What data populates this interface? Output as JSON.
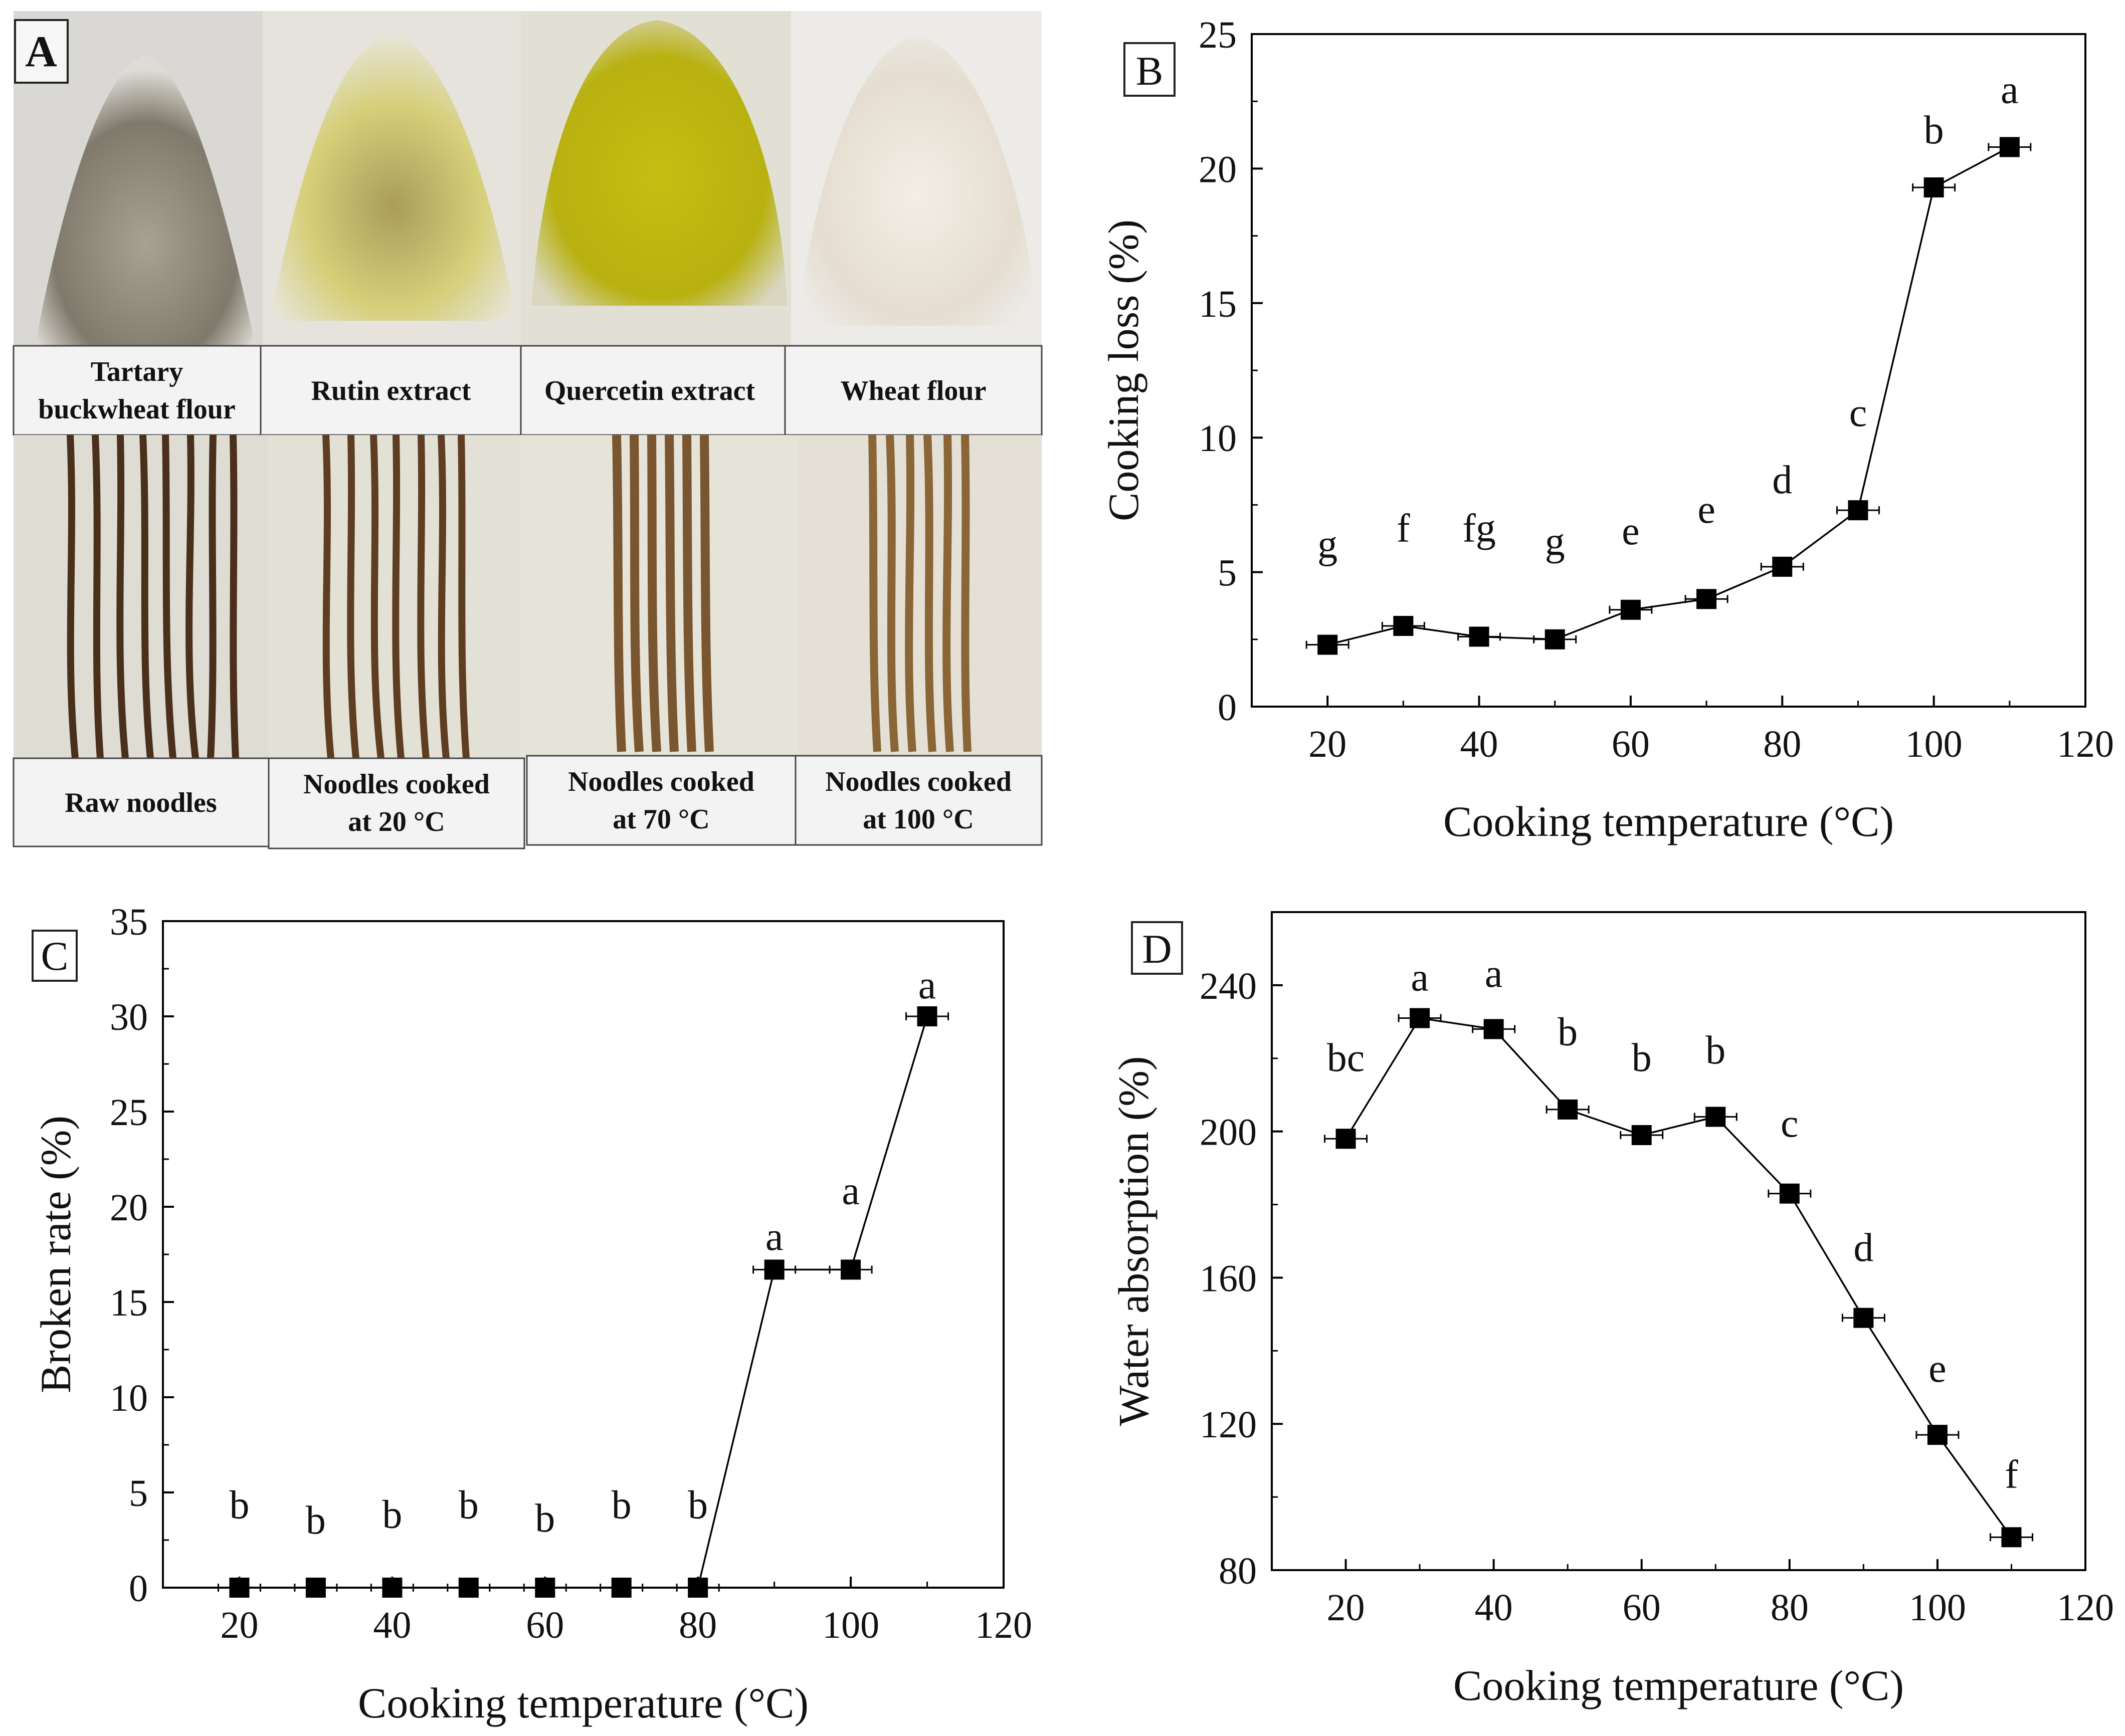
{
  "panel_a": {
    "label": "A",
    "powders": [
      {
        "name": "tartary-buckwheat-flour",
        "caption": [
          "Tartary",
          "buckwheat flour"
        ],
        "color": "#8f8a7c"
      },
      {
        "name": "rutin-extract",
        "caption": [
          "Rutin extract"
        ],
        "color": "#c9c26a"
      },
      {
        "name": "quercetin-extract",
        "caption": [
          "Quercetin extract"
        ],
        "color": "#c9c21a"
      },
      {
        "name": "wheat-flour",
        "caption": [
          "Wheat flour"
        ],
        "color": "#e9e2d7"
      }
    ],
    "noodles": [
      {
        "name": "raw-noodles",
        "caption": [
          "Raw noodles"
        ],
        "color": "#5a3b22"
      },
      {
        "name": "noodles-cooked-20",
        "caption": [
          "Noodles cooked",
          "at 20 °C"
        ],
        "color": "#6a4628"
      },
      {
        "name": "noodles-cooked-70",
        "caption": [
          "Noodles cooked",
          "at 70 °C"
        ],
        "color": "#7e5a33"
      },
      {
        "name": "noodles-cooked-100",
        "caption": [
          "Noodles cooked",
          "at 100 °C"
        ],
        "color": "#8f6a3d"
      }
    ]
  },
  "chart_data": [
    {
      "id": "B",
      "type": "line",
      "panel_label": "B",
      "xlabel": "Cooking temperature (°C)",
      "ylabel": "Cooking loss (%)",
      "xlim": [
        10,
        120
      ],
      "ylim": [
        0,
        25
      ],
      "xticks": [
        20,
        40,
        60,
        80,
        100,
        120
      ],
      "yticks": [
        0,
        5,
        10,
        15,
        20,
        25
      ],
      "x": [
        20,
        30,
        40,
        50,
        60,
        70,
        80,
        90,
        100,
        110
      ],
      "y": [
        2.3,
        3.0,
        2.6,
        2.5,
        3.6,
        4.0,
        5.2,
        7.3,
        19.3,
        20.8
      ],
      "letters": [
        "g",
        "f",
        "fg",
        "g",
        "e",
        "e",
        "d",
        "c",
        "b",
        "a"
      ],
      "letter_y": [
        6.0,
        6.6,
        6.6,
        6.1,
        6.5,
        7.3,
        8.4,
        10.9,
        21.4,
        22.9
      ]
    },
    {
      "id": "C",
      "type": "line",
      "panel_label": "C",
      "xlabel": "Cooking temperature (°C)",
      "ylabel": "Broken rate (%)",
      "xlim": [
        10,
        120
      ],
      "ylim": [
        0,
        35
      ],
      "xticks": [
        20,
        40,
        60,
        80,
        100,
        120
      ],
      "yticks": [
        0,
        5,
        10,
        15,
        20,
        25,
        30,
        35
      ],
      "x": [
        20,
        30,
        40,
        50,
        60,
        70,
        80,
        90,
        100,
        110
      ],
      "y": [
        0,
        0,
        0,
        0,
        0,
        0,
        0,
        16.7,
        16.7,
        30.0
      ],
      "letters": [
        "b",
        "b",
        "b",
        "b",
        "b",
        "b",
        "b",
        "a",
        "a",
        "a"
      ],
      "letter_y": [
        4.3,
        3.5,
        3.8,
        4.3,
        3.6,
        4.3,
        4.3,
        18.4,
        20.8,
        31.6
      ]
    },
    {
      "id": "D",
      "type": "line",
      "panel_label": "D",
      "xlabel": "Cooking temperature (°C)",
      "ylabel": "Water absorption (%)",
      "xlim": [
        10,
        120
      ],
      "ylim": [
        80,
        260
      ],
      "xticks": [
        20,
        40,
        60,
        80,
        100,
        120
      ],
      "yticks": [
        80,
        120,
        160,
        200,
        240
      ],
      "x": [
        20,
        30,
        40,
        50,
        60,
        70,
        80,
        90,
        100,
        110
      ],
      "y": [
        198,
        231,
        228,
        206,
        199,
        204,
        183,
        149,
        117,
        89
      ],
      "letters": [
        "bc",
        "a",
        "a",
        "b",
        "b",
        "b",
        "c",
        "d",
        "e",
        "f"
      ],
      "letter_y": [
        220,
        242,
        243,
        227,
        220,
        222,
        202,
        168,
        135,
        106
      ]
    }
  ]
}
